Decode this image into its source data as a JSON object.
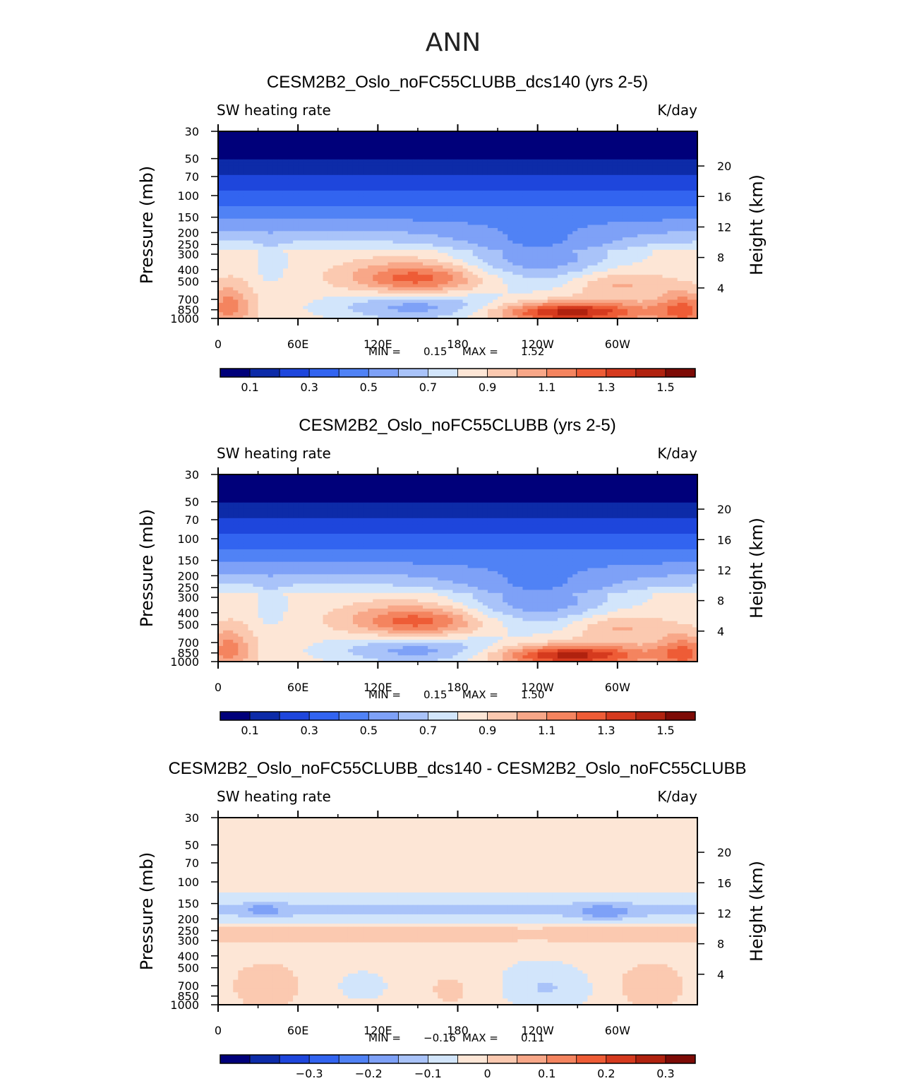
{
  "figure_title": "ANN",
  "colors": {
    "abs": [
      "#00007a",
      "#0d2ba8",
      "#1e46dc",
      "#3264f0",
      "#5082f5",
      "#7ea1f7",
      "#a9c3f9",
      "#d2e5fb",
      "#fde6d6",
      "#fbc9b0",
      "#f8a788",
      "#f4845f",
      "#ee5c36",
      "#d53a1e",
      "#b0220f",
      "#7d0b06"
    ],
    "diff": [
      "#00007a",
      "#0d2ba8",
      "#1e46dc",
      "#3264f0",
      "#5082f5",
      "#7ea1f7",
      "#a9c3f9",
      "#d2e5fb",
      "#fde6d6",
      "#fbc9b0",
      "#f8a788",
      "#f4845f",
      "#ee5c36",
      "#d53a1e",
      "#b0220f",
      "#7d0b06"
    ]
  },
  "panels": [
    {
      "title": "CESM2B2_Oslo_noFC55CLUBB_dcs140 (yrs 2-5)",
      "left_label": "SW heating rate",
      "right_label": "K/day",
      "min_text": "MIN =",
      "min_value": "0.15",
      "max_text": "MAX =",
      "max_value": "1.52",
      "colorbar_labels": [
        "0.1",
        "0.3",
        "0.5",
        "0.7",
        "0.9",
        "1.1",
        "1.3",
        "1.5"
      ]
    },
    {
      "title": "CESM2B2_Oslo_noFC55CLUBB (yrs 2-5)",
      "left_label": "SW heating rate",
      "right_label": "K/day",
      "min_text": "MIN =",
      "min_value": "0.15",
      "max_text": "MAX =",
      "max_value": "1.50",
      "colorbar_labels": [
        "0.1",
        "0.3",
        "0.5",
        "0.7",
        "0.9",
        "1.1",
        "1.3",
        "1.5"
      ]
    },
    {
      "title": "CESM2B2_Oslo_noFC55CLUBB_dcs140 - CESM2B2_Oslo_noFC55CLUBB",
      "left_label": "SW heating rate",
      "right_label": "K/day",
      "min_text": "MIN =",
      "min_value": "−0.16",
      "max_text": "MAX =",
      "max_value": "0.11",
      "colorbar_labels": [
        "−0.3",
        "−0.2",
        "−0.1",
        "0",
        "0.1",
        "0.2",
        "0.3"
      ]
    }
  ],
  "chart_data": [
    {
      "type": "heatmap",
      "title": "CESM2B2_Oslo_noFC55CLUBB_dcs140 (yrs 2-5)",
      "xlabel": "",
      "ylabel": "Pressure (mb)",
      "ylabel_right": "Height (km)",
      "x_ticks": [
        "0",
        "60E",
        "120E",
        "180",
        "120W",
        "60W"
      ],
      "x_tick_values": [
        0,
        60,
        120,
        180,
        240,
        300
      ],
      "xlim": [
        0,
        360
      ],
      "y_ticks": [
        "30",
        "50",
        "70",
        "100",
        "150",
        "200",
        "250",
        "300",
        "400",
        "500",
        "700",
        "850",
        "1000"
      ],
      "y_tick_values": [
        30,
        50,
        70,
        100,
        150,
        200,
        250,
        300,
        400,
        500,
        700,
        850,
        1000
      ],
      "ylim": [
        1000,
        30
      ],
      "y_right_ticks": [
        "4",
        "8",
        "12",
        "16",
        "20"
      ],
      "levels": [
        0.1,
        0.2,
        0.3,
        0.4,
        0.5,
        0.6,
        0.7,
        0.8,
        0.9,
        1.0,
        1.1,
        1.2,
        1.3,
        1.4,
        1.5
      ],
      "min": 0.15,
      "max": 1.52,
      "units": "K/day"
    },
    {
      "type": "heatmap",
      "title": "CESM2B2_Oslo_noFC55CLUBB (yrs 2-5)",
      "xlabel": "",
      "ylabel": "Pressure (mb)",
      "ylabel_right": "Height (km)",
      "x_ticks": [
        "0",
        "60E",
        "120E",
        "180",
        "120W",
        "60W"
      ],
      "x_tick_values": [
        0,
        60,
        120,
        180,
        240,
        300
      ],
      "xlim": [
        0,
        360
      ],
      "y_ticks": [
        "30",
        "50",
        "70",
        "100",
        "150",
        "200",
        "250",
        "300",
        "400",
        "500",
        "700",
        "850",
        "1000"
      ],
      "y_tick_values": [
        30,
        50,
        70,
        100,
        150,
        200,
        250,
        300,
        400,
        500,
        700,
        850,
        1000
      ],
      "ylim": [
        1000,
        30
      ],
      "y_right_ticks": [
        "4",
        "8",
        "12",
        "16",
        "20"
      ],
      "levels": [
        0.1,
        0.2,
        0.3,
        0.4,
        0.5,
        0.6,
        0.7,
        0.8,
        0.9,
        1.0,
        1.1,
        1.2,
        1.3,
        1.4,
        1.5
      ],
      "min": 0.15,
      "max": 1.5,
      "units": "K/day"
    },
    {
      "type": "heatmap",
      "title": "CESM2B2_Oslo_noFC55CLUBB_dcs140 - CESM2B2_Oslo_noFC55CLUBB",
      "xlabel": "",
      "ylabel": "Pressure (mb)",
      "ylabel_right": "Height (km)",
      "x_ticks": [
        "0",
        "60E",
        "120E",
        "180",
        "120W",
        "60W"
      ],
      "x_tick_values": [
        0,
        60,
        120,
        180,
        240,
        300
      ],
      "xlim": [
        0,
        360
      ],
      "y_ticks": [
        "30",
        "50",
        "70",
        "100",
        "150",
        "200",
        "250",
        "300",
        "400",
        "500",
        "700",
        "850",
        "1000"
      ],
      "y_tick_values": [
        30,
        50,
        70,
        100,
        150,
        200,
        250,
        300,
        400,
        500,
        700,
        850,
        1000
      ],
      "ylim": [
        1000,
        30
      ],
      "y_right_ticks": [
        "4",
        "8",
        "12",
        "16",
        "20"
      ],
      "levels": [
        -0.35,
        -0.3,
        -0.25,
        -0.2,
        -0.15,
        -0.1,
        -0.05,
        0,
        0.05,
        0.1,
        0.15,
        0.2,
        0.25,
        0.3,
        0.35
      ],
      "min": -0.16,
      "max": 0.11,
      "units": "K/day"
    }
  ]
}
